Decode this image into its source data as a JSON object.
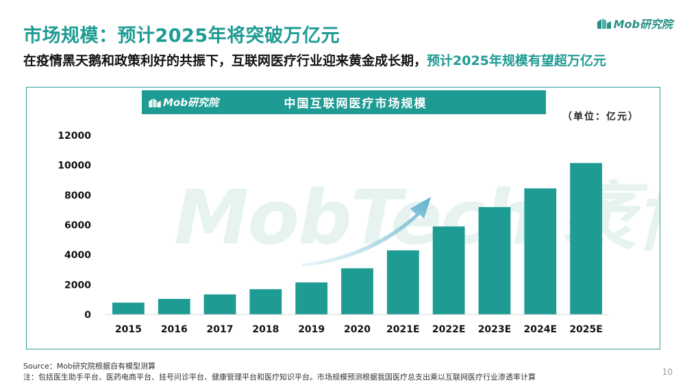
{
  "page": {
    "title": "市场规模：预计2025年将突破万亿元",
    "subtitle_part1": "在疫情黑天鹅和政策利好的共振下，互联网医疗行业迎来黄金成长期，",
    "subtitle_part2": "预计2025年规模有望超万亿元",
    "brand": "Mob研究院",
    "page_number": "10",
    "source": "Source：Mob研究院根据自有模型测算",
    "note": "注：包括医生助手平台、医药电商平台、挂号问诊平台、健康管理平台和医疗知识平台。市场规模预测根据我国医疗总支出乘以互联网医疗行业渗透率计算",
    "accent_color": "#1e9b93"
  },
  "chart_data": {
    "type": "bar",
    "header_logo": "Mob研究院",
    "title": "中国互联网医疗市场规模",
    "unit_label": "（单位：亿元）",
    "watermark": "MobTech 袤博",
    "categories": [
      "2015",
      "2016",
      "2017",
      "2018",
      "2019",
      "2020",
      "2021E",
      "2022E",
      "2023E",
      "2024E",
      "2025E"
    ],
    "values": [
      800,
      1050,
      1350,
      1700,
      2150,
      3100,
      4300,
      5900,
      7200,
      8450,
      10150
    ],
    "ylim": [
      0,
      12000
    ],
    "yticks": [
      0,
      2000,
      4000,
      6000,
      8000,
      10000,
      12000
    ],
    "bar_color": "#1e9b93",
    "grid": false,
    "annotation": "upward-trend-arrow"
  }
}
